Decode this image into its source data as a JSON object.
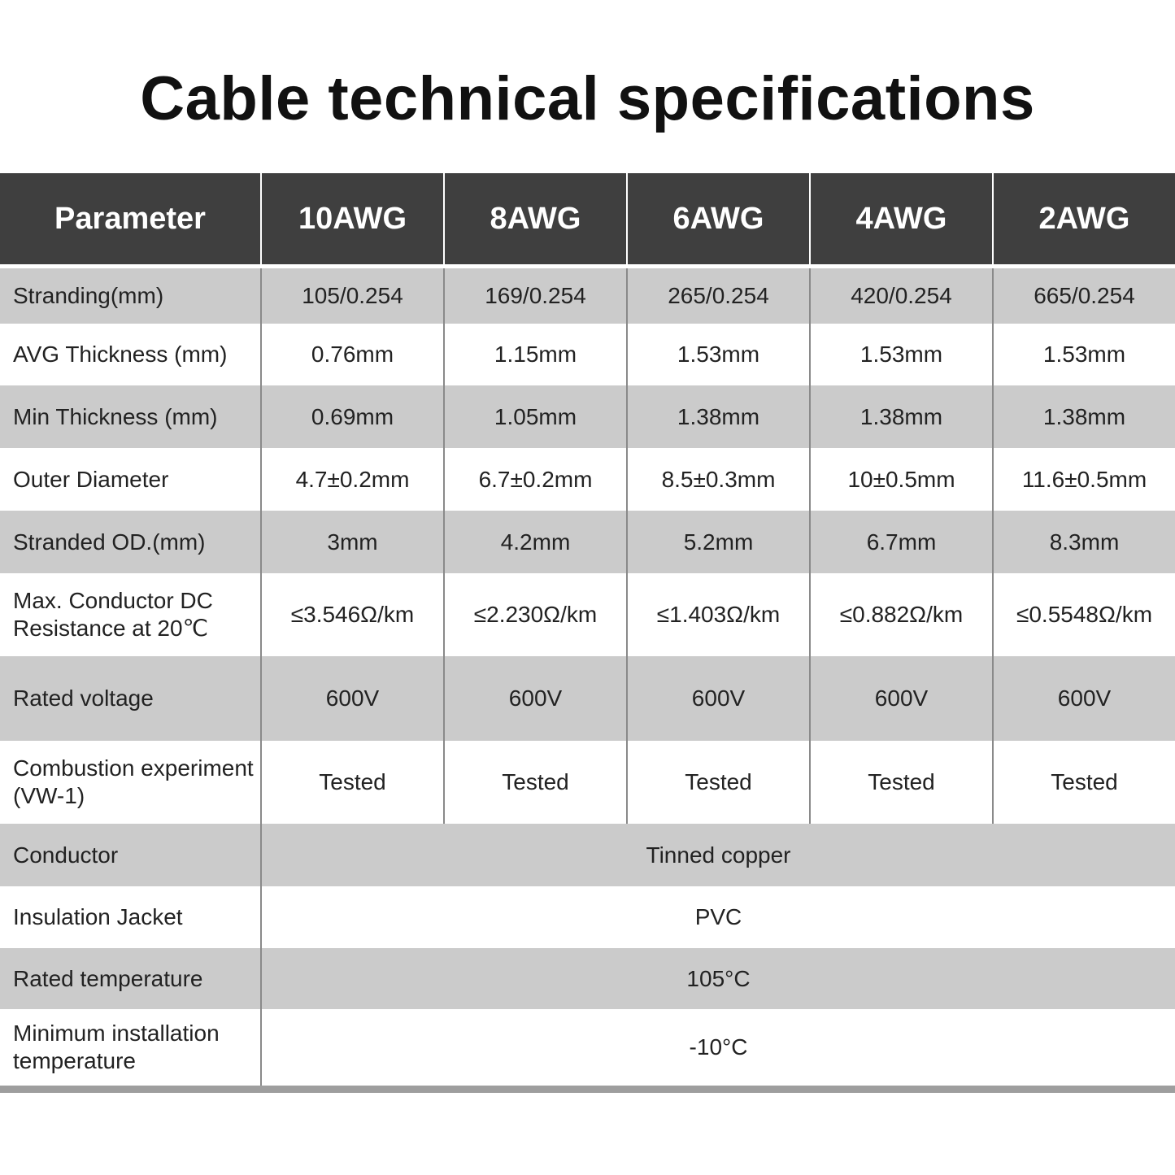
{
  "title": "Cable technical specifications",
  "table": {
    "header": [
      "Parameter",
      "10AWG",
      "8AWG",
      "6AWG",
      "4AWG",
      "2AWG"
    ],
    "rows": [
      {
        "label": "Stranding(mm)",
        "values": [
          "105/0.254",
          "169/0.254",
          "265/0.254",
          "420/0.254",
          "665/0.254"
        ]
      },
      {
        "label": "AVG Thickness (mm)",
        "values": [
          "0.76mm",
          "1.15mm",
          "1.53mm",
          "1.53mm",
          "1.53mm"
        ]
      },
      {
        "label": "Min Thickness (mm)",
        "values": [
          "0.69mm",
          "1.05mm",
          "1.38mm",
          "1.38mm",
          "1.38mm"
        ]
      },
      {
        "label": "Outer Diameter",
        "values": [
          "4.7±0.2mm",
          "6.7±0.2mm",
          "8.5±0.3mm",
          "10±0.5mm",
          "11.6±0.5mm"
        ]
      },
      {
        "label": "Stranded OD.(mm)",
        "values": [
          "3mm",
          "4.2mm",
          "5.2mm",
          "6.7mm",
          "8.3mm"
        ]
      },
      {
        "label": "Max. Conductor DC Resistance at 20℃",
        "values": [
          "≤3.546Ω/km",
          "≤2.230Ω/km",
          "≤1.403Ω/km",
          "≤0.882Ω/km",
          "≤0.5548Ω/km"
        ]
      },
      {
        "label": "Rated voltage",
        "values": [
          "600V",
          "600V",
          "600V",
          "600V",
          "600V"
        ]
      },
      {
        "label": "Combustion experiment (VW-1)",
        "values": [
          "Tested",
          "Tested",
          "Tested",
          "Tested",
          "Tested"
        ]
      },
      {
        "label": "Conductor",
        "values": [
          "Tinned copper"
        ]
      },
      {
        "label": "Insulation Jacket",
        "values": [
          "PVC"
        ]
      },
      {
        "label": "Rated temperature",
        "values": [
          "105°C"
        ]
      },
      {
        "label": "Minimum installation temperature",
        "values": [
          "-10°C"
        ]
      }
    ]
  },
  "colors": {
    "header_bg": "#3f3f3f",
    "stripe": "#cbcbcb",
    "header_text": "#ffffff"
  }
}
